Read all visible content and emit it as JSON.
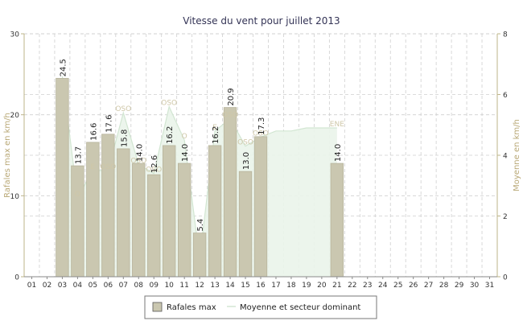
{
  "chart_data": {
    "type": "bar",
    "title": "Vitesse du vent pour juillet 2013",
    "ylabel": "Rafales max en km/h",
    "y2label": "Moyenne en km/h",
    "ylim": [
      0,
      30
    ],
    "y2lim": [
      0,
      8
    ],
    "yticks": [
      "0",
      "10",
      "20",
      "30"
    ],
    "y2ticks": [
      "0",
      "2",
      "4",
      "6",
      "8"
    ],
    "grid": true,
    "legend_position": "bottom",
    "categories": [
      "01",
      "02",
      "03",
      "04",
      "05",
      "06",
      "07",
      "08",
      "09",
      "10",
      "11",
      "12",
      "13",
      "14",
      "15",
      "16",
      "17",
      "18",
      "19",
      "20",
      "21",
      "22",
      "23",
      "24",
      "25",
      "26",
      "27",
      "28",
      "29",
      "30",
      "31"
    ],
    "series": [
      {
        "name": "Rafales max",
        "values": [
          null,
          null,
          24.5,
          13.7,
          16.6,
          17.6,
          15.8,
          14.0,
          12.6,
          16.2,
          14.0,
          5.4,
          16.2,
          20.9,
          13.0,
          17.3,
          null,
          null,
          null,
          null,
          14.0,
          null,
          null,
          null,
          null,
          null,
          null,
          null,
          null,
          null,
          null
        ],
        "labels": [
          "",
          "",
          "24.5",
          "13.7",
          "16.6",
          "17.6",
          "15.8",
          "14.0",
          "12.6",
          "16.2",
          "14.0",
          "5.4",
          "16.2",
          "20.9",
          "13.0",
          "17.3",
          "",
          "",
          "",
          "",
          "14.0",
          "",
          "",
          "",
          "",
          "",
          "",
          "",
          "",
          "",
          ""
        ],
        "color": "#cac7b0",
        "stroke": "#b7b49c"
      },
      {
        "name": "Moyenne et secteur dominant",
        "values": [
          null,
          null,
          6.6,
          2.6,
          3.5,
          3.5,
          5.4,
          3.7,
          3.4,
          5.6,
          4.5,
          0.6,
          4.8,
          5.2,
          4.3,
          4.6,
          4.8,
          4.8,
          4.9,
          4.9,
          4.9,
          null,
          null,
          null,
          null,
          null,
          null,
          null,
          null,
          null,
          null
        ],
        "sectors": [
          "",
          "",
          "",
          "O",
          "E",
          "OSO",
          "OSO",
          "OSO",
          "OSO",
          "OSO",
          "O",
          "",
          "E",
          "OSO",
          "OSO",
          "OSO",
          "",
          "",
          "",
          "",
          "ENE",
          "",
          "",
          "",
          "",
          "",
          "",
          "",
          "",
          "",
          ""
        ],
        "colors": {
          "line": "#d2e6d2",
          "fill": "#eaf4ea",
          "secteur": "#cfc7a8"
        }
      }
    ],
    "colors": {
      "axis": "#bdb48a",
      "grid": "#cfcfcf",
      "text": "#333333",
      "title": "#333355",
      "axis_label": "#b9a876"
    }
  }
}
